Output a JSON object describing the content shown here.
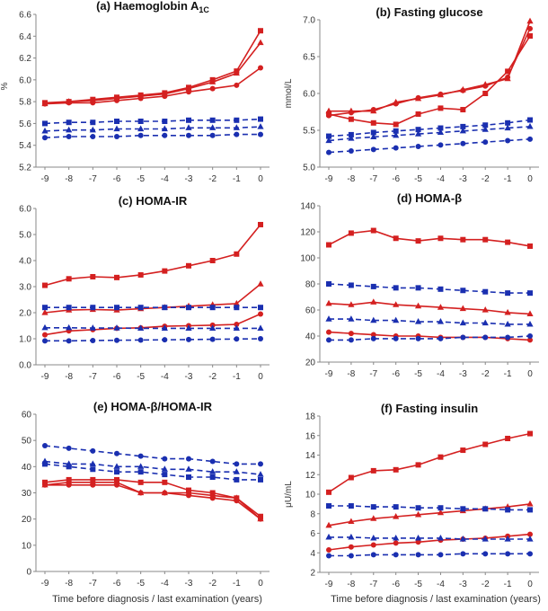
{
  "figure": {
    "xlabel": "Time before diagnosis / last examination (years)",
    "x": [
      -9,
      -8,
      -7,
      -6,
      -5,
      -4,
      -3,
      -2,
      -1,
      0
    ],
    "colors": {
      "red": "#d42020",
      "blue": "#1a2fb0"
    }
  },
  "chart_data": [
    {
      "type": "line",
      "title": "(a) Haemoglobin A",
      "title_sub": "1C",
      "ylabel": "%",
      "ylim": [
        5.2,
        6.6
      ],
      "yticks": [
        5.2,
        5.4,
        5.6,
        5.8,
        6.0,
        6.2,
        6.4,
        6.6
      ],
      "ydecimals": 1,
      "x": [
        -9,
        -8,
        -7,
        -6,
        -5,
        -4,
        -3,
        -2,
        -1,
        0
      ],
      "series": [
        {
          "color": "red",
          "marker": "square",
          "dashed": false,
          "values": [
            5.79,
            5.8,
            5.82,
            5.84,
            5.86,
            5.88,
            5.93,
            6.0,
            6.08,
            6.45
          ]
        },
        {
          "color": "red",
          "marker": "triangle",
          "dashed": false,
          "values": [
            5.78,
            5.8,
            5.81,
            5.83,
            5.85,
            5.87,
            5.92,
            5.98,
            6.06,
            6.34
          ]
        },
        {
          "color": "red",
          "marker": "circle",
          "dashed": false,
          "values": [
            5.78,
            5.79,
            5.79,
            5.81,
            5.83,
            5.85,
            5.89,
            5.92,
            5.95,
            6.11
          ]
        },
        {
          "color": "blue",
          "marker": "square",
          "dashed": true,
          "values": [
            5.6,
            5.61,
            5.61,
            5.62,
            5.62,
            5.62,
            5.63,
            5.63,
            5.63,
            5.64
          ]
        },
        {
          "color": "blue",
          "marker": "triangle",
          "dashed": true,
          "values": [
            5.53,
            5.54,
            5.54,
            5.55,
            5.55,
            5.55,
            5.56,
            5.56,
            5.56,
            5.57
          ]
        },
        {
          "color": "blue",
          "marker": "circle",
          "dashed": true,
          "values": [
            5.47,
            5.48,
            5.48,
            5.48,
            5.49,
            5.49,
            5.49,
            5.49,
            5.5,
            5.5
          ]
        }
      ]
    },
    {
      "type": "line",
      "title": "(b) Fasting glucose",
      "ylabel": "mmol/L",
      "ylim": [
        5.0,
        7.0
      ],
      "yticks": [
        5.0,
        5.5,
        6.0,
        6.5,
        7.0
      ],
      "ydecimals": 1,
      "x": [
        -9,
        -8,
        -7,
        -6,
        -5,
        -4,
        -3,
        -2,
        -1,
        0
      ],
      "series": [
        {
          "color": "red",
          "marker": "square",
          "dashed": false,
          "values": [
            5.72,
            5.65,
            5.6,
            5.58,
            5.72,
            5.8,
            5.78,
            6.0,
            6.3,
            6.78
          ]
        },
        {
          "color": "red",
          "marker": "triangle",
          "dashed": false,
          "values": [
            5.76,
            5.76,
            5.76,
            5.88,
            5.93,
            5.98,
            6.05,
            6.12,
            6.2,
            6.98
          ]
        },
        {
          "color": "red",
          "marker": "circle",
          "dashed": false,
          "values": [
            5.7,
            5.74,
            5.78,
            5.86,
            5.94,
            5.99,
            6.04,
            6.1,
            6.22,
            6.88
          ]
        },
        {
          "color": "blue",
          "marker": "square",
          "dashed": true,
          "values": [
            5.42,
            5.44,
            5.47,
            5.49,
            5.51,
            5.53,
            5.55,
            5.57,
            5.6,
            5.64
          ]
        },
        {
          "color": "blue",
          "marker": "triangle",
          "dashed": true,
          "values": [
            5.36,
            5.39,
            5.41,
            5.43,
            5.45,
            5.47,
            5.49,
            5.51,
            5.53,
            5.55
          ]
        },
        {
          "color": "blue",
          "marker": "circle",
          "dashed": true,
          "values": [
            5.2,
            5.22,
            5.24,
            5.26,
            5.28,
            5.3,
            5.32,
            5.34,
            5.36,
            5.38
          ]
        }
      ]
    },
    {
      "type": "line",
      "title": "(c) HOMA-IR",
      "ylabel": "",
      "ylim": [
        0.0,
        6.0
      ],
      "yticks": [
        0.0,
        1.0,
        2.0,
        3.0,
        4.0,
        5.0,
        6.0
      ],
      "ydecimals": 1,
      "x": [
        -9,
        -8,
        -7,
        -6,
        -5,
        -4,
        -3,
        -2,
        -1,
        0
      ],
      "series": [
        {
          "color": "red",
          "marker": "square",
          "dashed": false,
          "values": [
            3.05,
            3.3,
            3.38,
            3.35,
            3.45,
            3.6,
            3.8,
            4.0,
            4.25,
            5.38
          ]
        },
        {
          "color": "red",
          "marker": "triangle",
          "dashed": false,
          "values": [
            2.0,
            2.1,
            2.12,
            2.1,
            2.15,
            2.2,
            2.25,
            2.3,
            2.35,
            3.1
          ]
        },
        {
          "color": "red",
          "marker": "circle",
          "dashed": false,
          "values": [
            1.15,
            1.3,
            1.35,
            1.4,
            1.42,
            1.48,
            1.5,
            1.52,
            1.55,
            1.95
          ]
        },
        {
          "color": "blue",
          "marker": "square",
          "dashed": true,
          "values": [
            2.2,
            2.2,
            2.2,
            2.2,
            2.2,
            2.2,
            2.2,
            2.2,
            2.2,
            2.2
          ]
        },
        {
          "color": "blue",
          "marker": "triangle",
          "dashed": true,
          "values": [
            1.42,
            1.42,
            1.41,
            1.41,
            1.4,
            1.4,
            1.4,
            1.4,
            1.4,
            1.4
          ]
        },
        {
          "color": "blue",
          "marker": "circle",
          "dashed": true,
          "values": [
            0.92,
            0.92,
            0.93,
            0.94,
            0.95,
            0.96,
            0.97,
            0.98,
            0.99,
            1.0
          ]
        }
      ]
    },
    {
      "type": "line",
      "title": "(d) HOMA-β",
      "ylabel": "",
      "ylim": [
        20,
        140
      ],
      "yticks": [
        20,
        40,
        60,
        80,
        100,
        120,
        140
      ],
      "ydecimals": 0,
      "x": [
        -9,
        -8,
        -7,
        -6,
        -5,
        -4,
        -3,
        -2,
        -1,
        0
      ],
      "series": [
        {
          "color": "red",
          "marker": "square",
          "dashed": false,
          "values": [
            110,
            119,
            121,
            115,
            113,
            115,
            114,
            114,
            112,
            109
          ]
        },
        {
          "color": "red",
          "marker": "triangle",
          "dashed": false,
          "values": [
            65,
            64,
            66,
            64,
            63,
            62,
            61,
            60,
            58,
            57
          ]
        },
        {
          "color": "red",
          "marker": "circle",
          "dashed": false,
          "values": [
            43,
            42,
            41,
            40,
            40,
            39,
            39,
            39,
            38,
            37
          ]
        },
        {
          "color": "blue",
          "marker": "square",
          "dashed": true,
          "values": [
            80,
            79,
            78,
            77,
            77,
            76,
            75,
            74,
            73,
            73
          ]
        },
        {
          "color": "blue",
          "marker": "triangle",
          "dashed": true,
          "values": [
            53,
            53,
            52,
            52,
            51,
            51,
            50,
            50,
            49,
            49
          ]
        },
        {
          "color": "blue",
          "marker": "circle",
          "dashed": true,
          "values": [
            37,
            37,
            38,
            38,
            38,
            38,
            39,
            39,
            39,
            40
          ]
        }
      ]
    },
    {
      "type": "line",
      "title": "(e) HOMA-β/HOMA-IR",
      "ylabel": "",
      "ylim": [
        0,
        60
      ],
      "yticks": [
        0,
        10,
        20,
        30,
        40,
        50,
        60
      ],
      "ydecimals": 0,
      "x": [
        -9,
        -8,
        -7,
        -6,
        -5,
        -4,
        -3,
        -2,
        -1,
        0
      ],
      "series": [
        {
          "color": "red",
          "marker": "square",
          "dashed": false,
          "values": [
            34,
            35,
            35,
            35,
            34,
            34,
            31,
            30,
            28,
            21
          ]
        },
        {
          "color": "red",
          "marker": "triangle",
          "dashed": false,
          "values": [
            33,
            34,
            34,
            34,
            30,
            30,
            30,
            29,
            28,
            20
          ]
        },
        {
          "color": "red",
          "marker": "circle",
          "dashed": false,
          "values": [
            33,
            33,
            33,
            33,
            30,
            30,
            29,
            28,
            27,
            20
          ]
        },
        {
          "color": "blue",
          "marker": "circle",
          "dashed": true,
          "values": [
            48,
            47,
            46,
            45,
            44,
            43,
            43,
            42,
            41,
            41
          ]
        },
        {
          "color": "blue",
          "marker": "triangle",
          "dashed": true,
          "values": [
            42,
            41,
            41,
            40,
            40,
            39,
            39,
            38,
            38,
            37
          ]
        },
        {
          "color": "blue",
          "marker": "square",
          "dashed": true,
          "values": [
            41,
            40,
            39,
            38,
            38,
            37,
            36,
            36,
            35,
            35
          ]
        }
      ]
    },
    {
      "type": "line",
      "title": "(f) Fasting insulin",
      "ylabel": "μU/mL",
      "ylim": [
        2,
        18
      ],
      "yticks": [
        2,
        4,
        6,
        8,
        10,
        12,
        14,
        16,
        18
      ],
      "ydecimals": 0,
      "x": [
        -9,
        -8,
        -7,
        -6,
        -5,
        -4,
        -3,
        -2,
        -1,
        0
      ],
      "series": [
        {
          "color": "red",
          "marker": "square",
          "dashed": false,
          "values": [
            10.2,
            11.7,
            12.4,
            12.5,
            13.0,
            13.8,
            14.5,
            15.1,
            15.7,
            16.2
          ]
        },
        {
          "color": "red",
          "marker": "triangle",
          "dashed": false,
          "values": [
            6.8,
            7.2,
            7.5,
            7.7,
            7.9,
            8.1,
            8.3,
            8.5,
            8.7,
            9.0
          ]
        },
        {
          "color": "red",
          "marker": "circle",
          "dashed": false,
          "values": [
            4.3,
            4.6,
            4.8,
            5.0,
            5.1,
            5.3,
            5.4,
            5.5,
            5.7,
            5.9
          ]
        },
        {
          "color": "blue",
          "marker": "square",
          "dashed": true,
          "values": [
            8.8,
            8.8,
            8.7,
            8.7,
            8.6,
            8.6,
            8.5,
            8.5,
            8.4,
            8.4
          ]
        },
        {
          "color": "blue",
          "marker": "triangle",
          "dashed": true,
          "values": [
            5.6,
            5.6,
            5.5,
            5.5,
            5.5,
            5.5,
            5.4,
            5.4,
            5.4,
            5.4
          ]
        },
        {
          "color": "blue",
          "marker": "circle",
          "dashed": true,
          "values": [
            3.7,
            3.7,
            3.8,
            3.8,
            3.8,
            3.8,
            3.9,
            3.9,
            3.9,
            3.9
          ]
        }
      ]
    }
  ]
}
